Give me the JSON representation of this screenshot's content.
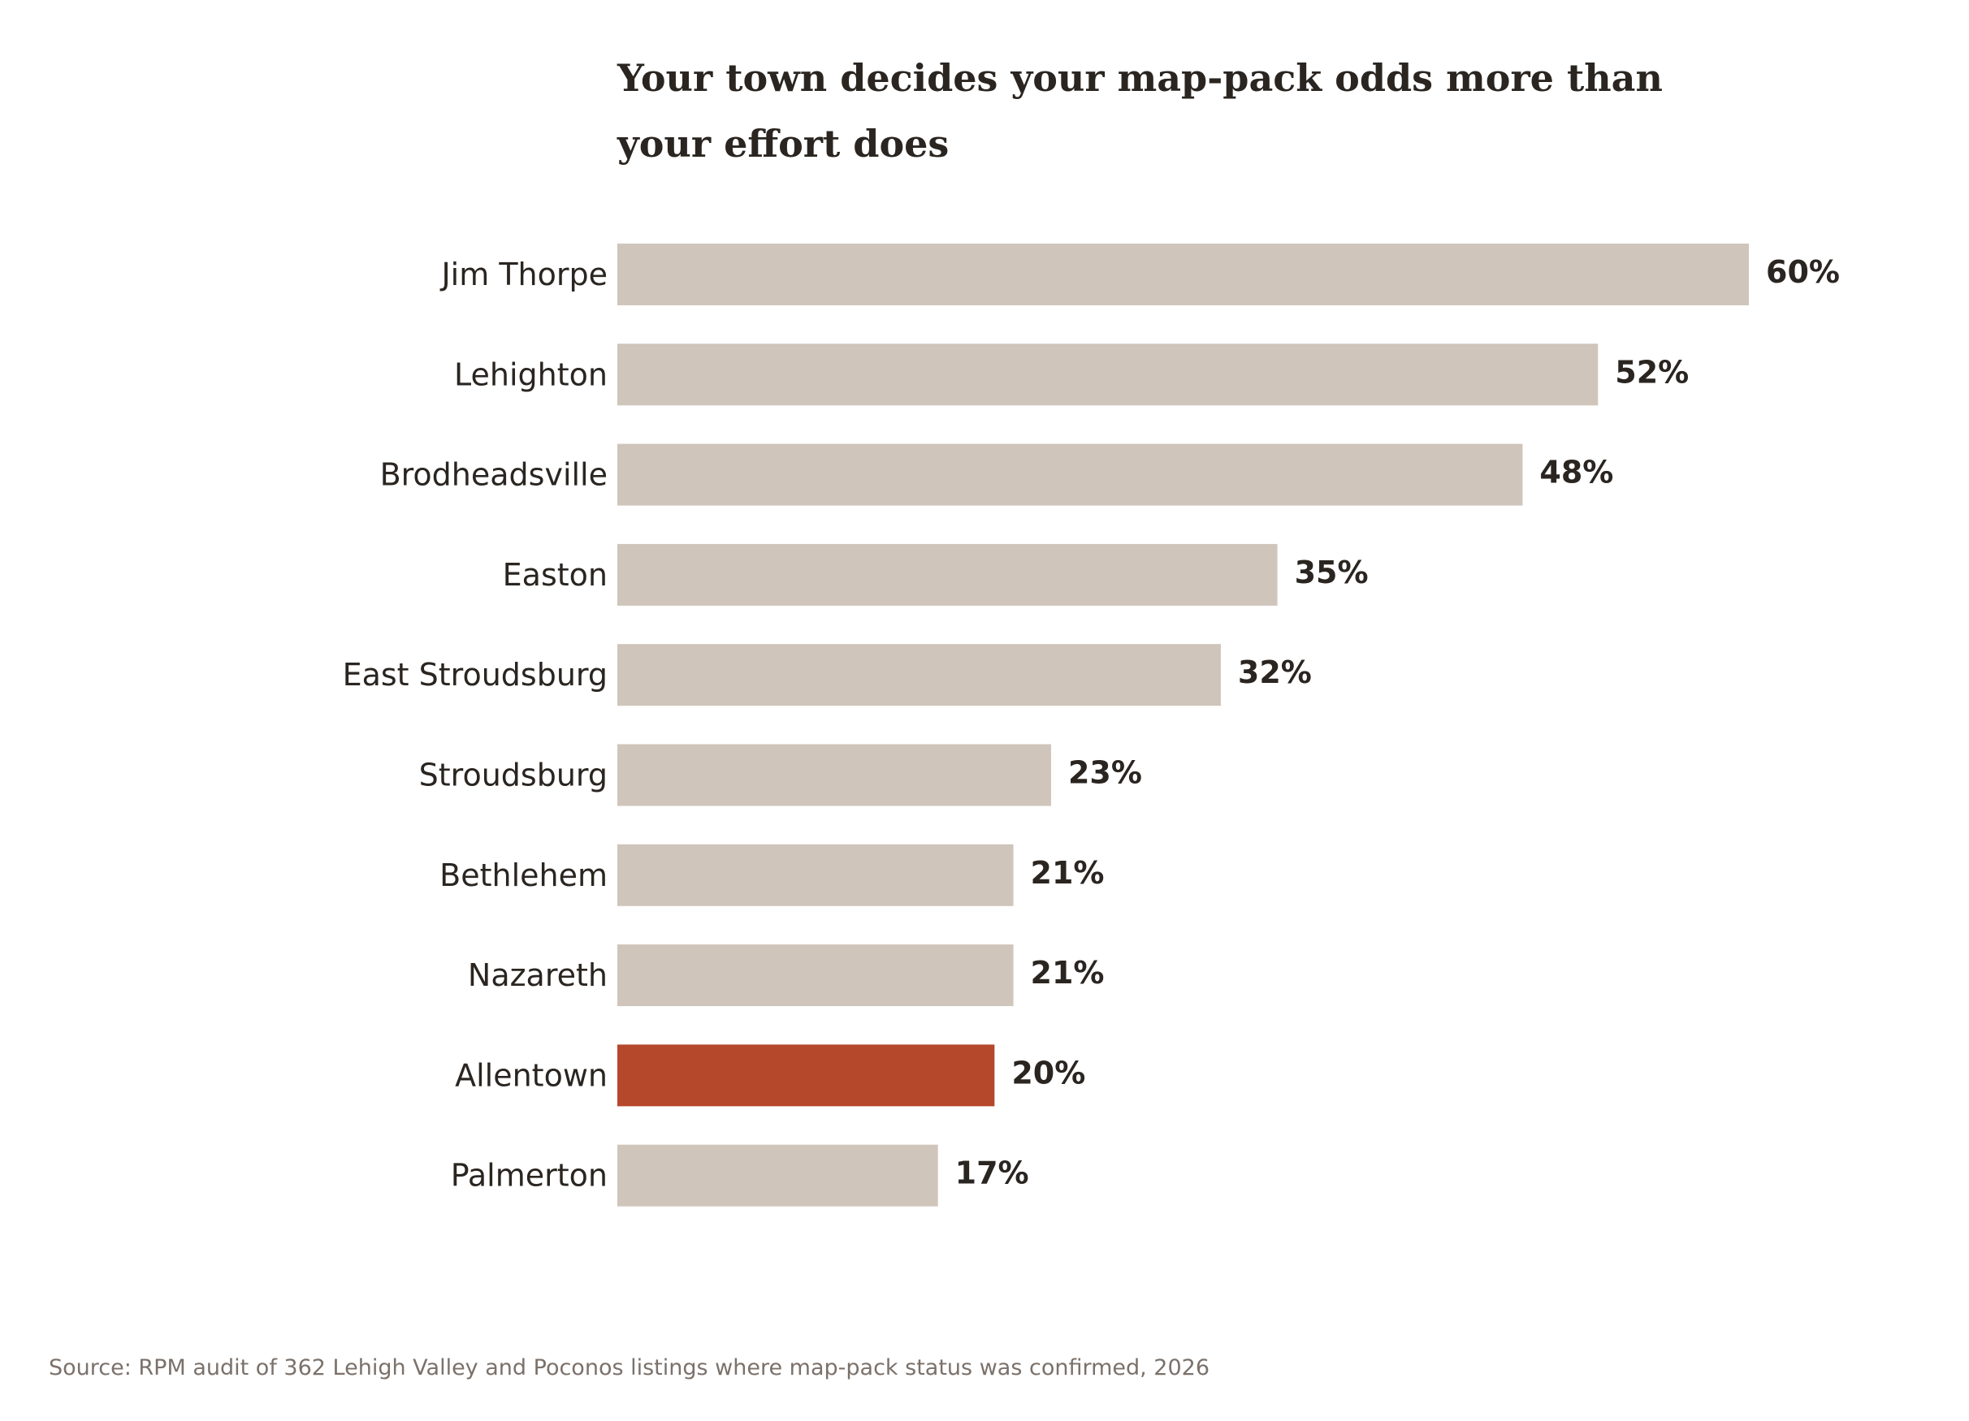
{
  "chart_data": {
    "type": "bar",
    "orientation": "horizontal",
    "title_lines": [
      "Your town decides your map-pack odds more than",
      "your effort does"
    ],
    "categories": [
      "Jim Thorpe",
      "Lehighton",
      "Brodheadsville",
      "Easton",
      "East Stroudsburg",
      "Stroudsburg",
      "Bethlehem",
      "Nazareth",
      "Allentown",
      "Palmerton"
    ],
    "values": [
      60,
      52,
      48,
      35,
      32,
      23,
      21,
      21,
      20,
      17
    ],
    "value_labels": [
      "60%",
      "52%",
      "48%",
      "35%",
      "32%",
      "23%",
      "21%",
      "21%",
      "20%",
      "17%"
    ],
    "highlight_category": "Allentown",
    "xlim": [
      0,
      60
    ],
    "grid": false,
    "legend": "none",
    "colors": {
      "bar": "#cfc5bb",
      "highlight": "#b5472b",
      "text": "#2a2520",
      "source": "#7b716a"
    },
    "source": "Source: RPM audit of 362 Lehigh Valley and Poconos listings where map-pack status was confirmed, 2026"
  }
}
